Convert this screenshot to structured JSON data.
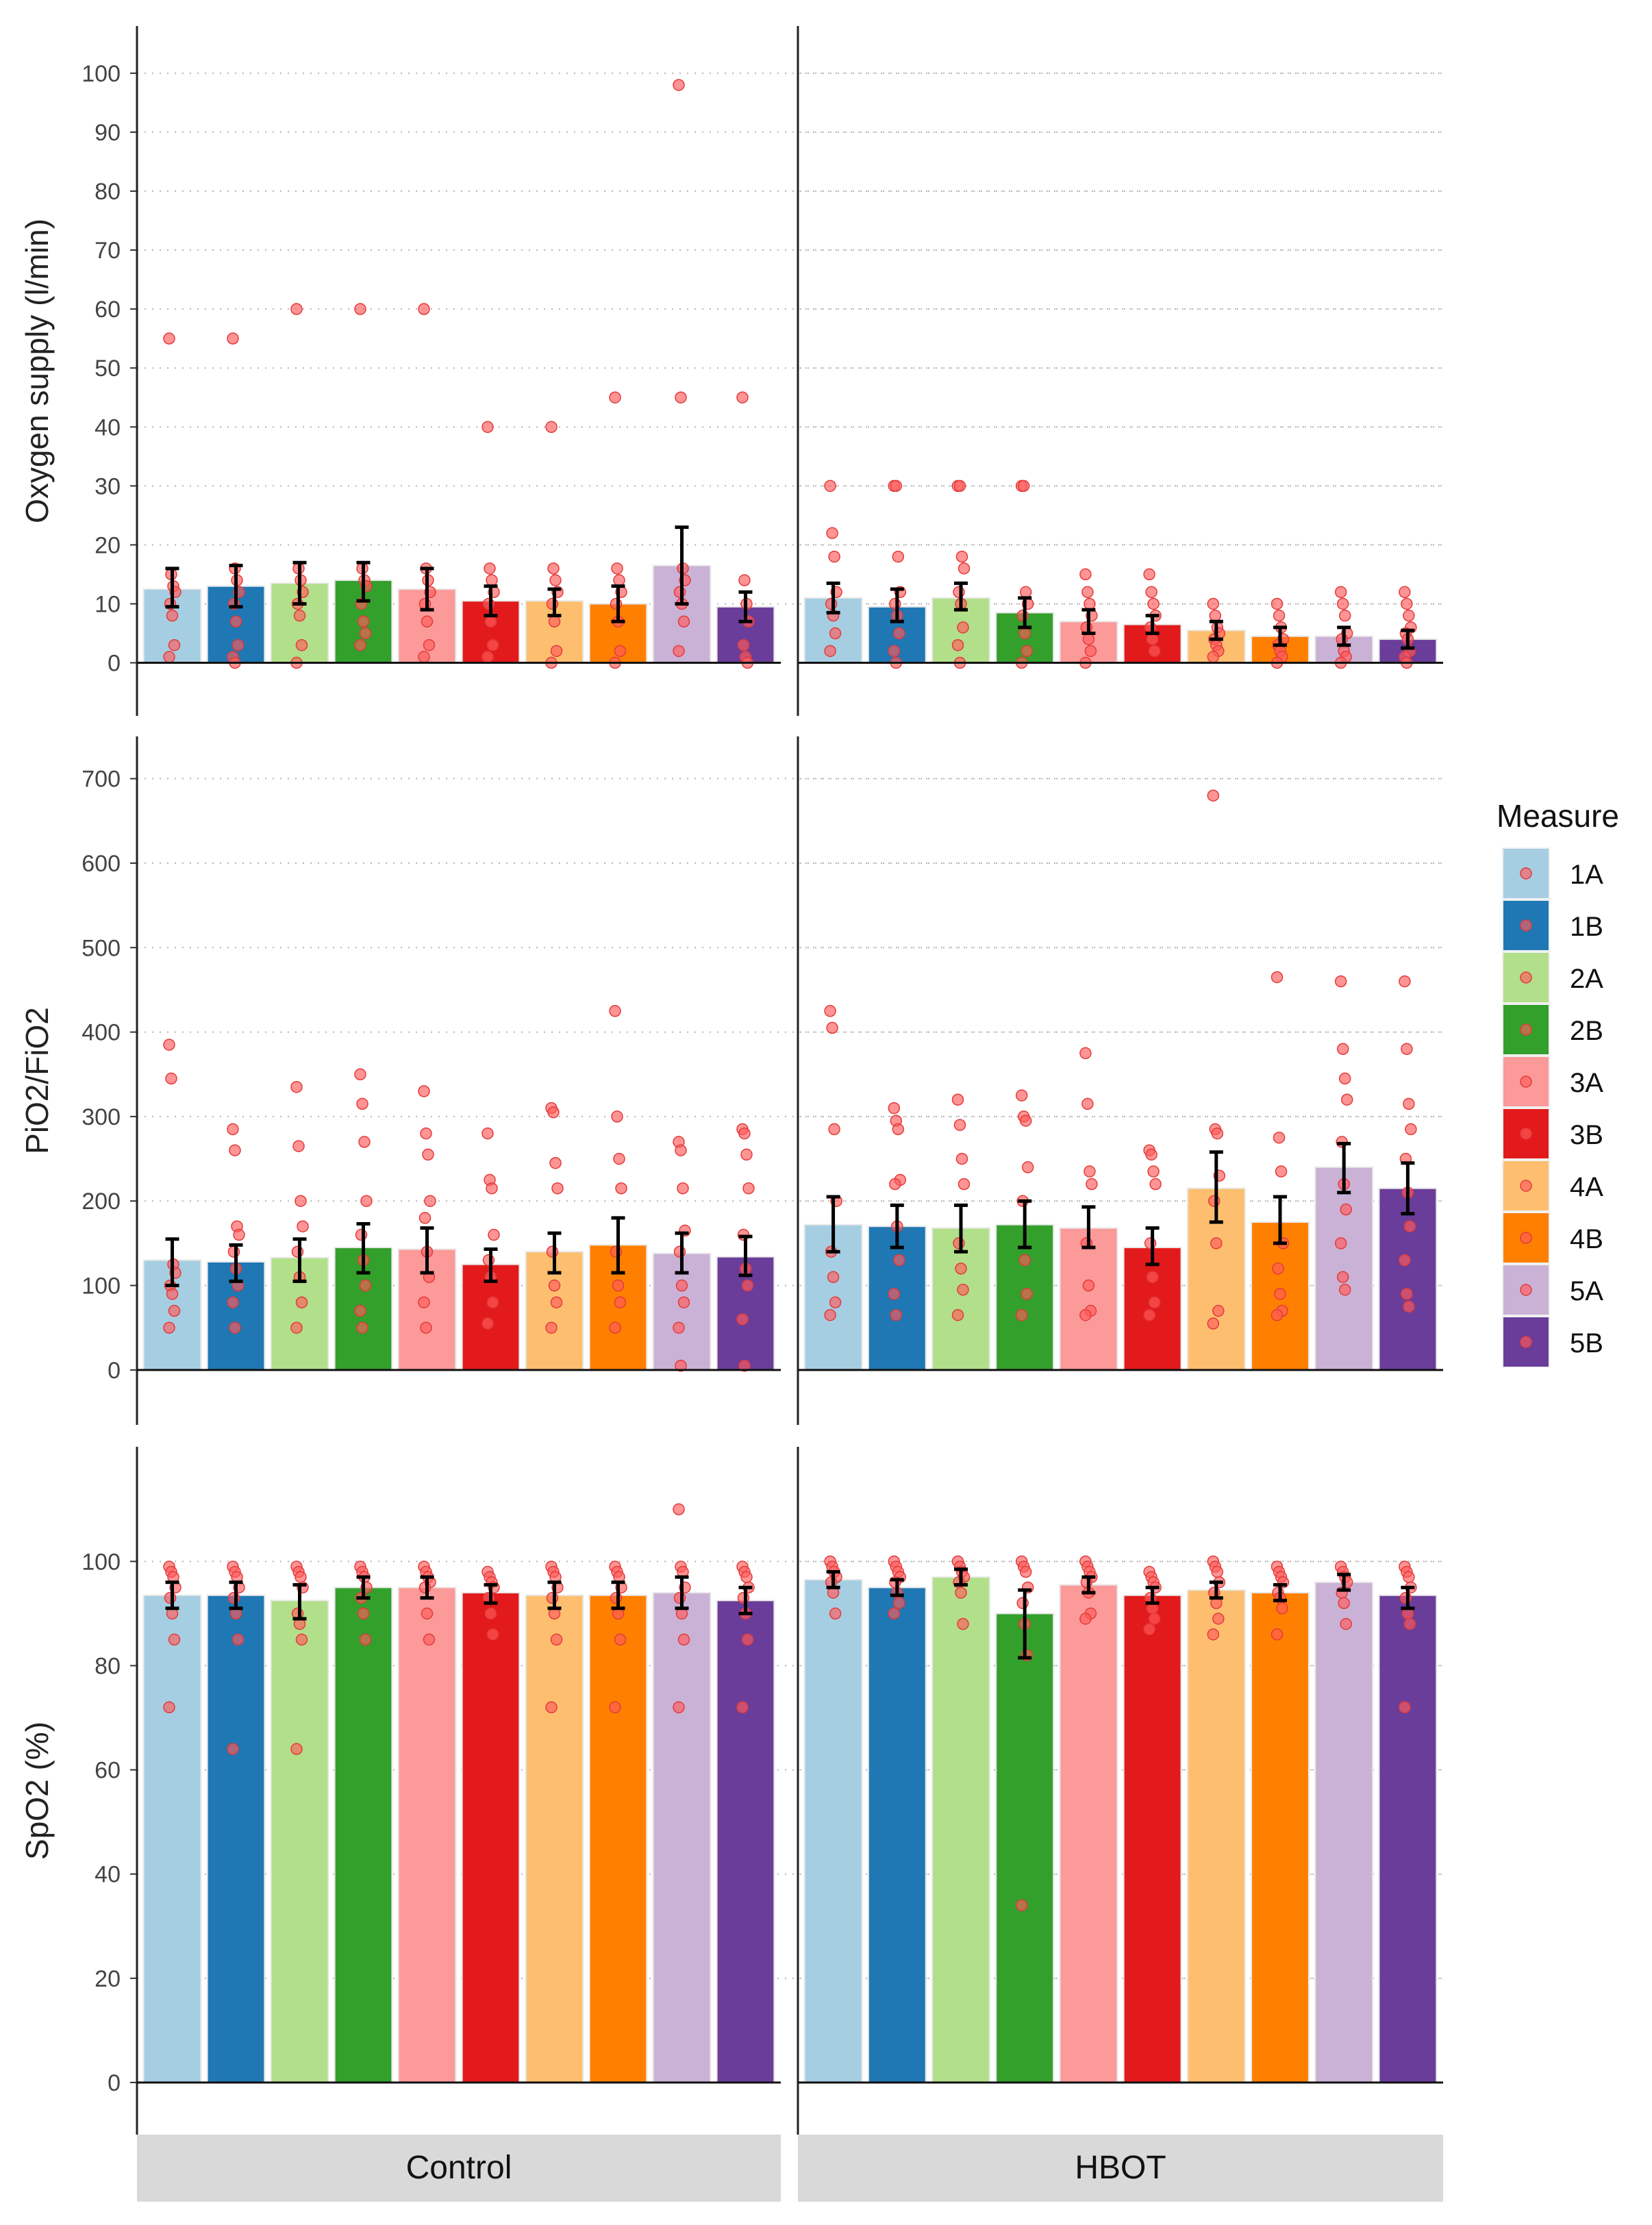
{
  "facets": [
    "Control",
    "HBOT"
  ],
  "legend": {
    "title": "Measure",
    "entries": [
      {
        "key": "1A",
        "color": "#a6cee3"
      },
      {
        "key": "1B",
        "color": "#1f78b4"
      },
      {
        "key": "2A",
        "color": "#b2df8a"
      },
      {
        "key": "2B",
        "color": "#33a02c"
      },
      {
        "key": "3A",
        "color": "#fb9a99"
      },
      {
        "key": "3B",
        "color": "#e31a1c"
      },
      {
        "key": "4A",
        "color": "#fdbf6f"
      },
      {
        "key": "4B",
        "color": "#ff7f00"
      },
      {
        "key": "5A",
        "color": "#cab2d6"
      },
      {
        "key": "5B",
        "color": "#6a3d9a"
      }
    ]
  },
  "point_color": "#ff5a5a",
  "chart_data": [
    {
      "type": "bar",
      "ylabel": "Oxygen supply (l/min)",
      "ylim": [
        -9,
        108
      ],
      "yticks": [
        0,
        10,
        20,
        30,
        40,
        50,
        60,
        70,
        80,
        90,
        100
      ],
      "gridlines": true,
      "categories": [
        "1A",
        "1B",
        "2A",
        "2B",
        "3A",
        "3B",
        "4A",
        "4B",
        "5A",
        "5B"
      ],
      "series": [
        {
          "name": "Control",
          "values": [
            12.5,
            13,
            13.5,
            14,
            12.5,
            10.5,
            10.5,
            10,
            16.5,
            9.5
          ],
          "err_low": [
            9.5,
            9.5,
            10,
            10.5,
            9,
            8,
            8,
            7,
            10,
            7
          ],
          "err_high": [
            16,
            16.5,
            17,
            17,
            16,
            13,
            12.5,
            13,
            23,
            12
          ],
          "points": [
            [
              55,
              15,
              13,
              12,
              10,
              8,
              3,
              1
            ],
            [
              55,
              16,
              14,
              12,
              10,
              7,
              3,
              1,
              0
            ],
            [
              60,
              16,
              14,
              12,
              10,
              8,
              3,
              0
            ],
            [
              60,
              16,
              14,
              13,
              10,
              7,
              5,
              3
            ],
            [
              60,
              16,
              14,
              12,
              10,
              7,
              3,
              1
            ],
            [
              40,
              16,
              14,
              12,
              10,
              7,
              3,
              1
            ],
            [
              40,
              16,
              14,
              12,
              10,
              7,
              2,
              0
            ],
            [
              45,
              16,
              14,
              12,
              10,
              7,
              2,
              0
            ],
            [
              98,
              45,
              16,
              14,
              12,
              10,
              7,
              2
            ],
            [
              45,
              14,
              10,
              7,
              3,
              1,
              0
            ]
          ]
        },
        {
          "name": "HBOT",
          "values": [
            11,
            9.5,
            11,
            8.5,
            7,
            6.5,
            5.5,
            4.5,
            4.5,
            4
          ],
          "err_low": [
            8.5,
            7,
            9,
            6,
            5,
            5,
            4,
            3,
            3,
            2.5
          ],
          "err_high": [
            13.5,
            12.5,
            13.5,
            11,
            9,
            8,
            7,
            6,
            6,
            5.5
          ],
          "points": [
            [
              30,
              22,
              18,
              12,
              10,
              8,
              5,
              2
            ],
            [
              30,
              30,
              18,
              12,
              10,
              8,
              5,
              2,
              0
            ],
            [
              30,
              30,
              18,
              16,
              12,
              10,
              6,
              3,
              0
            ],
            [
              30,
              30,
              12,
              10,
              8,
              5,
              2,
              0
            ],
            [
              15,
              12,
              10,
              8,
              6,
              4,
              2,
              0
            ],
            [
              15,
              12,
              10,
              8,
              6,
              4,
              2
            ],
            [
              10,
              8,
              6,
              5,
              4,
              3,
              2,
              1
            ],
            [
              10,
              8,
              6,
              4,
              3,
              2,
              1,
              0
            ],
            [
              12,
              10,
              8,
              5,
              4,
              2,
              1,
              0
            ],
            [
              12,
              10,
              8,
              6,
              5,
              4,
              2,
              1,
              0
            ]
          ]
        }
      ]
    },
    {
      "type": "bar",
      "ylabel": "PiO2/FiO2",
      "ylim": [
        -65,
        750
      ],
      "yticks": [
        0,
        100,
        200,
        300,
        400,
        500,
        600,
        700
      ],
      "gridlines": true,
      "categories": [
        "1A",
        "1B",
        "2A",
        "2B",
        "3A",
        "3B",
        "4A",
        "4B",
        "5A",
        "5B"
      ],
      "series": [
        {
          "name": "Control",
          "values": [
            130,
            128,
            133,
            145,
            143,
            125,
            140,
            148,
            138,
            134
          ],
          "err_low": [
            100,
            105,
            105,
            115,
            115,
            105,
            115,
            115,
            115,
            112
          ],
          "err_high": [
            155,
            148,
            155,
            173,
            168,
            143,
            162,
            180,
            162,
            158
          ],
          "points": [
            [
              385,
              345,
              125,
              115,
              100,
              90,
              70,
              50
            ],
            [
              285,
              260,
              170,
              160,
              140,
              120,
              100,
              80,
              50
            ],
            [
              335,
              265,
              200,
              170,
              140,
              110,
              80,
              50
            ],
            [
              350,
              315,
              270,
              200,
              160,
              130,
              100,
              70,
              50
            ],
            [
              330,
              280,
              255,
              200,
              180,
              140,
              110,
              80,
              50
            ],
            [
              280,
              225,
              215,
              160,
              130,
              110,
              80,
              55
            ],
            [
              310,
              305,
              245,
              215,
              140,
              100,
              80,
              50
            ],
            [
              425,
              300,
              250,
              215,
              140,
              100,
              80,
              50
            ],
            [
              270,
              260,
              215,
              165,
              140,
              100,
              80,
              50,
              5
            ],
            [
              285,
              280,
              255,
              215,
              160,
              120,
              100,
              60,
              5
            ]
          ]
        },
        {
          "name": "HBOT",
          "values": [
            172,
            170,
            168,
            172,
            168,
            145,
            215,
            175,
            240,
            215
          ],
          "err_low": [
            140,
            145,
            140,
            145,
            145,
            125,
            175,
            150,
            210,
            185
          ],
          "err_high": [
            205,
            195,
            195,
            200,
            193,
            168,
            258,
            205,
            268,
            245
          ],
          "points": [
            [
              425,
              405,
              285,
              200,
              140,
              110,
              80,
              65
            ],
            [
              310,
              295,
              285,
              225,
              220,
              170,
              130,
              90,
              65
            ],
            [
              320,
              290,
              250,
              220,
              150,
              120,
              95,
              65
            ],
            [
              325,
              300,
              295,
              240,
              200,
              130,
              90,
              65
            ],
            [
              375,
              315,
              235,
              220,
              150,
              100,
              70,
              65
            ],
            [
              260,
              255,
              235,
              220,
              150,
              110,
              80,
              65
            ],
            [
              680,
              285,
              280,
              230,
              200,
              150,
              70,
              55
            ],
            [
              465,
              275,
              235,
              150,
              120,
              90,
              70,
              65
            ],
            [
              460,
              380,
              345,
              320,
              270,
              220,
              190,
              150,
              110,
              95
            ],
            [
              460,
              380,
              315,
              285,
              250,
              210,
              170,
              130,
              90,
              75
            ]
          ]
        }
      ]
    },
    {
      "type": "bar",
      "ylabel": "SpO2 (%)",
      "ylim": [
        -10,
        122
      ],
      "yticks": [
        0,
        20,
        40,
        60,
        80,
        100
      ],
      "gridlines": true,
      "categories": [
        "1A",
        "1B",
        "2A",
        "2B",
        "3A",
        "3B",
        "4A",
        "4B",
        "5A",
        "5B"
      ],
      "series": [
        {
          "name": "Control",
          "values": [
            93.5,
            93.5,
            92.5,
            95,
            95,
            94,
            93.5,
            93.5,
            94,
            92.5
          ],
          "err_low": [
            91,
            91,
            89,
            93,
            93,
            92,
            91,
            91,
            91,
            90
          ],
          "err_high": [
            96,
            96,
            95.5,
            97,
            97,
            95.5,
            96,
            96,
            97,
            95
          ],
          "points": [
            [
              99,
              98,
              97,
              95,
              93,
              90,
              85,
              72
            ],
            [
              99,
              98,
              97,
              95,
              93,
              90,
              85,
              64
            ],
            [
              99,
              98,
              97,
              95,
              90,
              88,
              85,
              64
            ],
            [
              99,
              98,
              97,
              95,
              93,
              90,
              85
            ],
            [
              99,
              98,
              97,
              96,
              95,
              90,
              85
            ],
            [
              98,
              97,
              96,
              95,
              93,
              90,
              86
            ],
            [
              99,
              98,
              97,
              95,
              93,
              90,
              85,
              72
            ],
            [
              99,
              98,
              97,
              95,
              93,
              90,
              85,
              72
            ],
            [
              110,
              99,
              98,
              95,
              93,
              90,
              85,
              72
            ],
            [
              99,
              98,
              97,
              95,
              93,
              90,
              85,
              72
            ]
          ]
        },
        {
          "name": "HBOT",
          "values": [
            96.5,
            95,
            97,
            90,
            95.5,
            93.5,
            94.5,
            94,
            96,
            93.5
          ],
          "err_low": [
            95,
            93.5,
            95.5,
            81.5,
            94,
            92,
            93,
            92.5,
            94.5,
            91
          ],
          "err_high": [
            98,
            96.5,
            98.5,
            94.5,
            97,
            95,
            96,
            95.5,
            97.5,
            95
          ],
          "points": [
            [
              100,
              99,
              98,
              97,
              96,
              94,
              90
            ],
            [
              100,
              99,
              98,
              97,
              96,
              94,
              92,
              90
            ],
            [
              100,
              99,
              98,
              97,
              96,
              94,
              88
            ],
            [
              100,
              99,
              98,
              95,
              92,
              88,
              82,
              34
            ],
            [
              100,
              99,
              98,
              97,
              96,
              94,
              90,
              89
            ],
            [
              98,
              97,
              96,
              95,
              93,
              91,
              89,
              87
            ],
            [
              100,
              99,
              98,
              96,
              94,
              92,
              89,
              86
            ],
            [
              99,
              98,
              97,
              96,
              94,
              93,
              91,
              86
            ],
            [
              99,
              98,
              97,
              96,
              94,
              92,
              88
            ],
            [
              99,
              98,
              97,
              95,
              93,
              90,
              88,
              72
            ]
          ]
        }
      ]
    }
  ]
}
